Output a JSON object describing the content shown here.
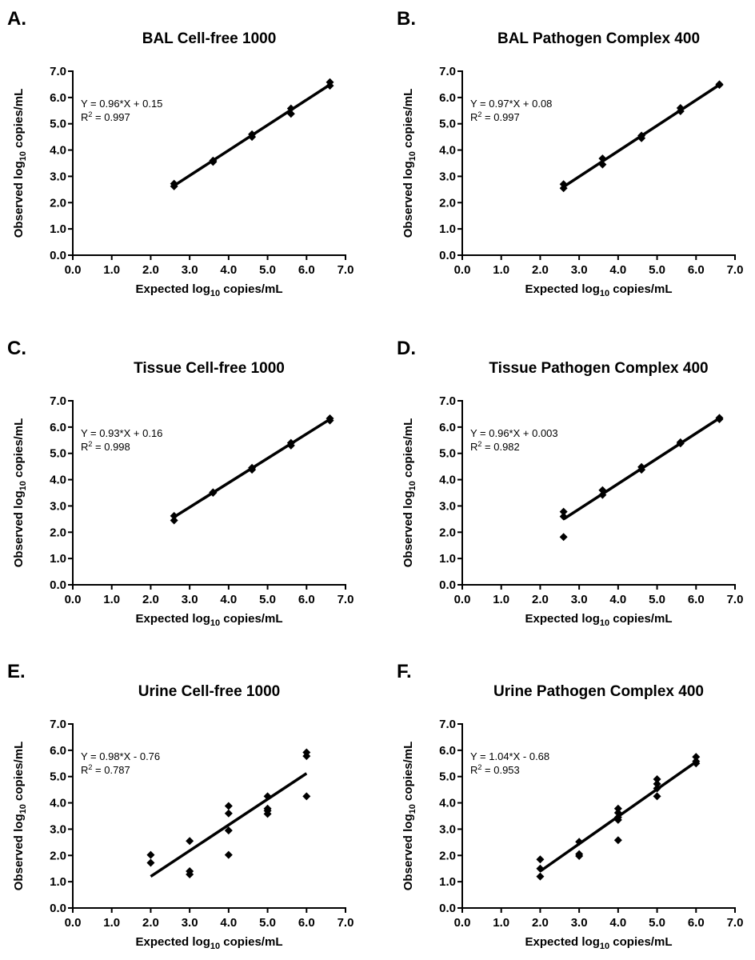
{
  "chart_data": [
    {
      "panel": "A.",
      "type": "scatter",
      "title": "BAL Cell-free 1000",
      "xlabel": "Expected log10 copies/mL",
      "ylabel": "Observed log10 copies/mL",
      "xlim": [
        0,
        7
      ],
      "ylim": [
        0,
        7
      ],
      "xticks": [
        "0.0",
        "1.0",
        "2.0",
        "3.0",
        "4.0",
        "5.0",
        "6.0",
        "7.0"
      ],
      "yticks": [
        "0.0",
        "1.0",
        "2.0",
        "3.0",
        "4.0",
        "5.0",
        "6.0",
        "7.0"
      ],
      "grid": false,
      "equation": "Y = 0.96*X + 0.15",
      "r2_value": "0.997",
      "fit": {
        "slope": 0.96,
        "intercept": 0.15,
        "x_range": [
          2.6,
          6.6
        ]
      },
      "points": [
        [
          2.6,
          2.62
        ],
        [
          2.6,
          2.72
        ],
        [
          3.6,
          3.55
        ],
        [
          3.6,
          3.6
        ],
        [
          4.6,
          4.5
        ],
        [
          4.6,
          4.6
        ],
        [
          5.6,
          5.38
        ],
        [
          5.6,
          5.58
        ],
        [
          6.6,
          6.45
        ],
        [
          6.6,
          6.58
        ]
      ]
    },
    {
      "panel": "B.",
      "type": "scatter",
      "title": "BAL Pathogen Complex 400",
      "xlabel": "Expected log10 copies/mL",
      "ylabel": "Observed log10 copies/mL",
      "xlim": [
        0,
        7
      ],
      "ylim": [
        0,
        7
      ],
      "xticks": [
        "0.0",
        "1.0",
        "2.0",
        "3.0",
        "4.0",
        "5.0",
        "6.0",
        "7.0"
      ],
      "yticks": [
        "0.0",
        "1.0",
        "2.0",
        "3.0",
        "4.0",
        "5.0",
        "6.0",
        "7.0"
      ],
      "grid": false,
      "equation": "Y = 0.97*X + 0.08",
      "r2_value": "0.997",
      "fit": {
        "slope": 0.97,
        "intercept": 0.08,
        "x_range": [
          2.6,
          6.6
        ]
      },
      "points": [
        [
          2.6,
          2.55
        ],
        [
          2.6,
          2.7
        ],
        [
          3.6,
          3.45
        ],
        [
          3.6,
          3.68
        ],
        [
          4.6,
          4.45
        ],
        [
          4.6,
          4.55
        ],
        [
          5.6,
          5.48
        ],
        [
          5.6,
          5.6
        ],
        [
          6.6,
          6.48
        ],
        [
          6.6,
          6.5
        ]
      ]
    },
    {
      "panel": "C.",
      "type": "scatter",
      "title": "Tissue Cell-free 1000",
      "xlabel": "Expected log10 copies/mL",
      "ylabel": "Observed log10 copies/mL",
      "xlim": [
        0,
        7
      ],
      "ylim": [
        0,
        7
      ],
      "xticks": [
        "0.0",
        "1.0",
        "2.0",
        "3.0",
        "4.0",
        "5.0",
        "6.0",
        "7.0"
      ],
      "yticks": [
        "0.0",
        "1.0",
        "2.0",
        "3.0",
        "4.0",
        "5.0",
        "6.0",
        "7.0"
      ],
      "grid": false,
      "equation": "Y = 0.93*X + 0.16",
      "r2_value": "0.998",
      "fit": {
        "slope": 0.93,
        "intercept": 0.16,
        "x_range": [
          2.6,
          6.6
        ]
      },
      "points": [
        [
          2.6,
          2.45
        ],
        [
          2.6,
          2.62
        ],
        [
          3.6,
          3.5
        ],
        [
          3.6,
          3.52
        ],
        [
          4.6,
          4.38
        ],
        [
          4.6,
          4.45
        ],
        [
          5.6,
          5.3
        ],
        [
          5.6,
          5.4
        ],
        [
          6.6,
          6.25
        ],
        [
          6.6,
          6.33
        ]
      ]
    },
    {
      "panel": "D.",
      "type": "scatter",
      "title": "Tissue Pathogen Complex 400",
      "xlabel": "Expected log10 copies/mL",
      "ylabel": "Observed log10 copies/mL",
      "xlim": [
        0,
        7
      ],
      "ylim": [
        0,
        7
      ],
      "xticks": [
        "0.0",
        "1.0",
        "2.0",
        "3.0",
        "4.0",
        "5.0",
        "6.0",
        "7.0"
      ],
      "yticks": [
        "0.0",
        "1.0",
        "2.0",
        "3.0",
        "4.0",
        "5.0",
        "6.0",
        "7.0"
      ],
      "grid": false,
      "equation": "Y = 0.96*X + 0.003",
      "r2_value": "0.982",
      "fit": {
        "slope": 0.96,
        "intercept": 0.003,
        "x_range": [
          2.6,
          6.6
        ]
      },
      "points": [
        [
          2.6,
          1.82
        ],
        [
          2.6,
          2.6
        ],
        [
          2.6,
          2.78
        ],
        [
          3.6,
          3.42
        ],
        [
          3.6,
          3.6
        ],
        [
          4.6,
          4.38
        ],
        [
          4.6,
          4.48
        ],
        [
          5.6,
          5.38
        ],
        [
          5.6,
          5.42
        ],
        [
          6.6,
          6.3
        ],
        [
          6.6,
          6.35
        ]
      ]
    },
    {
      "panel": "E.",
      "type": "scatter",
      "title": "Urine Cell-free 1000",
      "xlabel": "Expected log10 copies/mL",
      "ylabel": "Observed log10 copies/mL",
      "xlim": [
        0,
        7
      ],
      "ylim": [
        0,
        7
      ],
      "xticks": [
        "0.0",
        "1.0",
        "2.0",
        "3.0",
        "4.0",
        "5.0",
        "6.0",
        "7.0"
      ],
      "yticks": [
        "0.0",
        "1.0",
        "2.0",
        "3.0",
        "4.0",
        "5.0",
        "6.0",
        "7.0"
      ],
      "grid": false,
      "equation": "Y = 0.98*X - 0.76",
      "r2_value": "0.787",
      "fit": {
        "slope": 0.98,
        "intercept": -0.76,
        "x_range": [
          2.0,
          6.0
        ]
      },
      "points": [
        [
          2,
          1.72
        ],
        [
          2,
          2.02
        ],
        [
          3,
          1.28
        ],
        [
          3,
          1.4
        ],
        [
          3,
          2.55
        ],
        [
          4,
          2.02
        ],
        [
          4,
          2.95
        ],
        [
          4,
          3.6
        ],
        [
          4,
          3.88
        ],
        [
          5,
          3.58
        ],
        [
          5,
          3.7
        ],
        [
          5,
          3.78
        ],
        [
          5,
          4.25
        ],
        [
          6,
          4.25
        ],
        [
          6,
          5.78
        ],
        [
          6,
          5.92
        ]
      ]
    },
    {
      "panel": "F.",
      "type": "scatter",
      "title": "Urine Pathogen Complex 400",
      "xlabel": "Expected log10 copies/mL",
      "ylabel": "Observed log10 copies/mL",
      "xlim": [
        0,
        7
      ],
      "ylim": [
        0,
        7
      ],
      "xticks": [
        "0.0",
        "1.0",
        "2.0",
        "3.0",
        "4.0",
        "5.0",
        "6.0",
        "7.0"
      ],
      "yticks": [
        "0.0",
        "1.0",
        "2.0",
        "3.0",
        "4.0",
        "5.0",
        "6.0",
        "7.0"
      ],
      "grid": false,
      "equation": "Y = 1.04*X - 0.68",
      "r2_value": "0.953",
      "fit": {
        "slope": 1.04,
        "intercept": -0.68,
        "x_range": [
          2.0,
          6.0
        ]
      },
      "points": [
        [
          2,
          1.2
        ],
        [
          2,
          1.5
        ],
        [
          2,
          1.85
        ],
        [
          3,
          1.98
        ],
        [
          3,
          2.05
        ],
        [
          3,
          2.52
        ],
        [
          4,
          2.58
        ],
        [
          4,
          3.35
        ],
        [
          4,
          3.45
        ],
        [
          4,
          3.62
        ],
        [
          4,
          3.78
        ],
        [
          5,
          4.25
        ],
        [
          5,
          4.55
        ],
        [
          5,
          4.72
        ],
        [
          5,
          4.9
        ],
        [
          6,
          5.5
        ],
        [
          6,
          5.58
        ],
        [
          6,
          5.75
        ]
      ]
    }
  ]
}
